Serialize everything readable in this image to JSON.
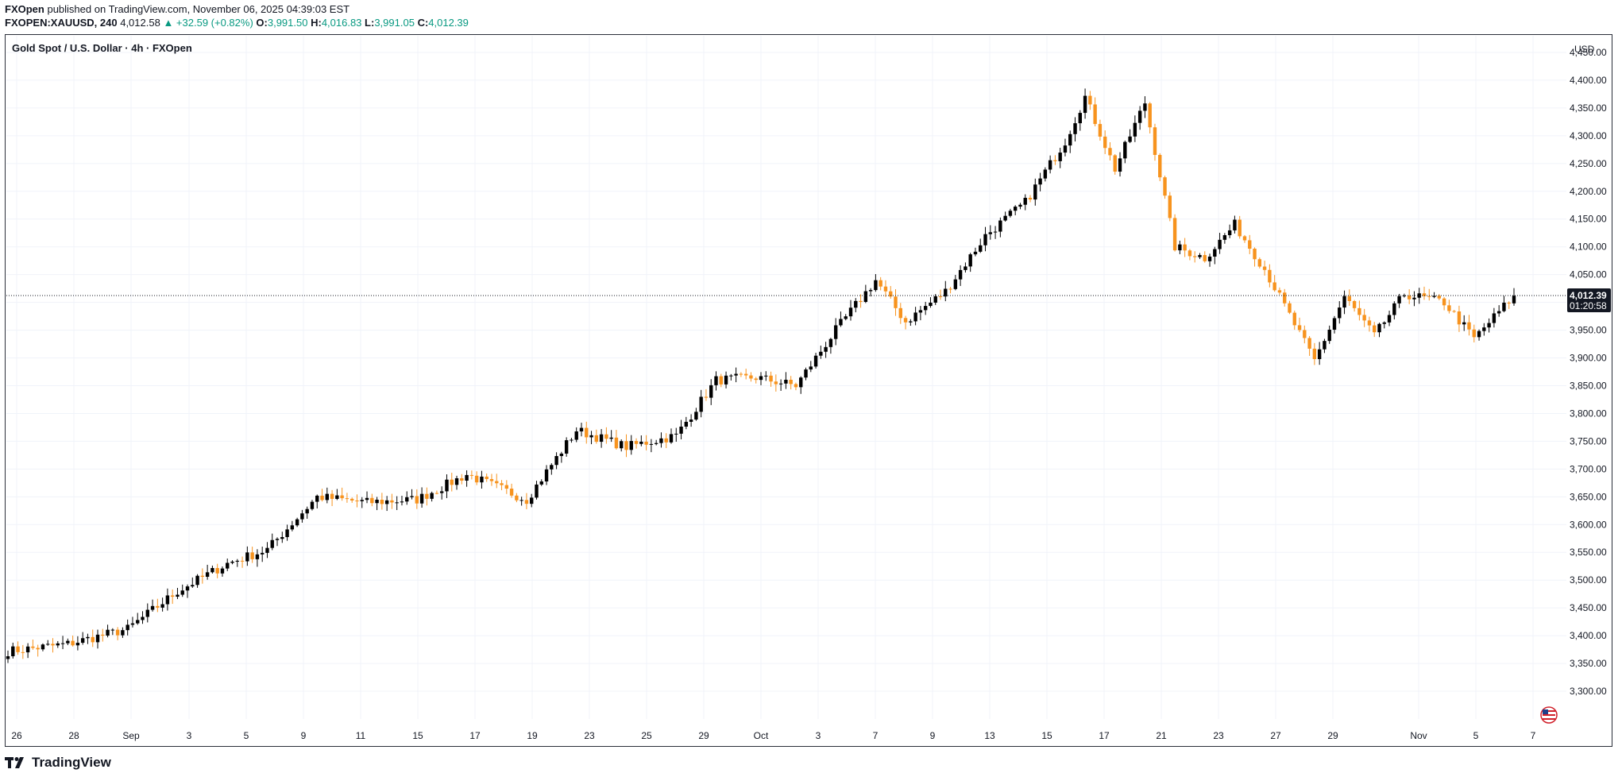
{
  "header": {
    "publisher": "FXOpen",
    "published_text": "published on TradingView.com, November 06, 2025 04:39:03 EST",
    "symbol": "FXOPEN:XAUUSD, 240",
    "last": "4,012.58",
    "change": "▲ +32.59 (+0.82%)",
    "o_label": "O:",
    "o_value": "3,991.50",
    "h_label": "H:",
    "h_value": "4,016.83",
    "l_label": "L:",
    "l_value": "3,991.05",
    "c_label": "C:",
    "c_value": "4,012.39"
  },
  "colors": {
    "up": "#000000",
    "down": "#f7931e",
    "positive": "#089981",
    "grid": "#f0f3fa"
  },
  "footer": {
    "brand": "TradingView"
  },
  "chart_data": {
    "type": "candlestick",
    "title": "Gold Spot / U.S. Dollar · 4h · FXOpen",
    "currency": "USD",
    "last_price_label": "4,012.39",
    "countdown_label": "01:20:58",
    "last_price": 4012.39,
    "ylim": [
      3250,
      4480
    ],
    "y_ticks": [
      3300,
      3350,
      3400,
      3450,
      3500,
      3550,
      3600,
      3650,
      3700,
      3750,
      3800,
      3850,
      3900,
      3950,
      4000,
      4050,
      4100,
      4150,
      4200,
      4250,
      4300,
      4350,
      4400,
      4450
    ],
    "y_tick_labels": [
      "3,300.00",
      "3,350.00",
      "3,400.00",
      "3,450.00",
      "3,500.00",
      "3,550.00",
      "3,600.00",
      "3,650.00",
      "3,700.00",
      "3,750.00",
      "3,800.00",
      "3,850.00",
      "3,900.00",
      "3,950.00",
      "4,000.00",
      "4,050.00",
      "4,100.00",
      "4,150.00",
      "4,200.00",
      "4,250.00",
      "4,300.00",
      "4,350.00",
      "4,400.00",
      "4,450.00"
    ],
    "x_labels": [
      "26",
      "28",
      "Sep",
      "3",
      "5",
      "9",
      "11",
      "15",
      "17",
      "19",
      "23",
      "25",
      "29",
      "Oct",
      "3",
      "7",
      "9",
      "13",
      "15",
      "17",
      "21",
      "23",
      "27",
      "29",
      "Nov",
      "5",
      "7"
    ],
    "key_points": [
      {
        "bar": 0,
        "close": 3372
      },
      {
        "bar": 12,
        "close": 3385
      },
      {
        "bar": 24,
        "close": 3412
      },
      {
        "bar": 34,
        "close": 3480
      },
      {
        "bar": 44,
        "close": 3530
      },
      {
        "bar": 52,
        "close": 3555
      },
      {
        "bar": 62,
        "close": 3650
      },
      {
        "bar": 72,
        "close": 3640
      },
      {
        "bar": 82,
        "close": 3645
      },
      {
        "bar": 92,
        "close": 3690
      },
      {
        "bar": 104,
        "close": 3645
      },
      {
        "bar": 114,
        "close": 3770
      },
      {
        "bar": 124,
        "close": 3740
      },
      {
        "bar": 134,
        "close": 3760
      },
      {
        "bar": 142,
        "close": 3860
      },
      {
        "bar": 150,
        "close": 3865
      },
      {
        "bar": 158,
        "close": 3850
      },
      {
        "bar": 166,
        "close": 3950
      },
      {
        "bar": 174,
        "close": 4040
      },
      {
        "bar": 180,
        "close": 3965
      },
      {
        "bar": 188,
        "close": 4020
      },
      {
        "bar": 196,
        "close": 4120
      },
      {
        "bar": 204,
        "close": 4180
      },
      {
        "bar": 212,
        "close": 4290
      },
      {
        "bar": 216,
        "close": 4370
      },
      {
        "bar": 222,
        "close": 4240
      },
      {
        "bar": 228,
        "close": 4360
      },
      {
        "bar": 234,
        "close": 4100
      },
      {
        "bar": 240,
        "close": 4080
      },
      {
        "bar": 246,
        "close": 4140
      },
      {
        "bar": 252,
        "close": 4060
      },
      {
        "bar": 258,
        "close": 3960
      },
      {
        "bar": 262,
        "close": 3895
      },
      {
        "bar": 268,
        "close": 4010
      },
      {
        "bar": 274,
        "close": 3940
      },
      {
        "bar": 280,
        "close": 4015
      },
      {
        "bar": 288,
        "close": 4000
      },
      {
        "bar": 294,
        "close": 3935
      },
      {
        "bar": 302,
        "close": 4012
      }
    ]
  }
}
